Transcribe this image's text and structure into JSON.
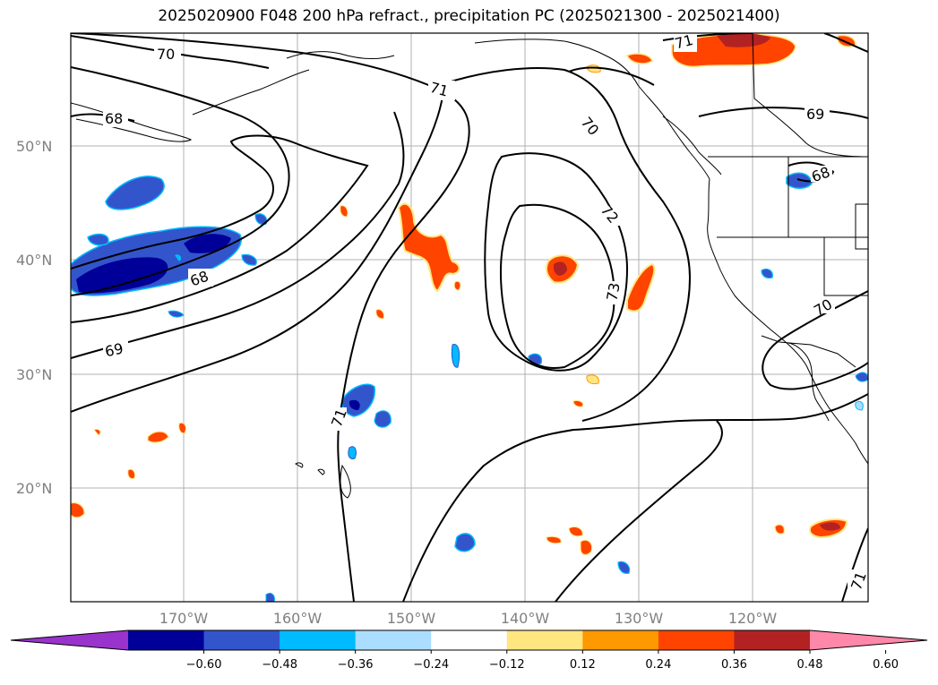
{
  "title": "2025020900 F048 200 hPa refract., precipitation PC (2025021300 - 2025021400)",
  "map": {
    "lat_ticks": [
      "50°N",
      "40°N",
      "30°N",
      "20°N"
    ],
    "lon_ticks": [
      "170°W",
      "160°W",
      "150°W",
      "140°W",
      "130°W",
      "120°W"
    ],
    "contour_labels": [
      "70",
      "71",
      "68",
      "70",
      "72",
      "73",
      "69",
      "68",
      "68",
      "69",
      "71",
      "71",
      "70",
      "71"
    ]
  },
  "colorbar": {
    "ticks": [
      "−0.60",
      "−0.48",
      "−0.36",
      "−0.24",
      "−0.12",
      "0.12",
      "0.24",
      "0.36",
      "0.48",
      "0.60"
    ],
    "colors": [
      "#9933cc",
      "#000099",
      "#3355cc",
      "#00bbff",
      "#aaddff",
      "#ffffff",
      "#ffe680",
      "#ff9900",
      "#ff4400",
      "#b22222",
      "#ff88aa"
    ]
  }
}
